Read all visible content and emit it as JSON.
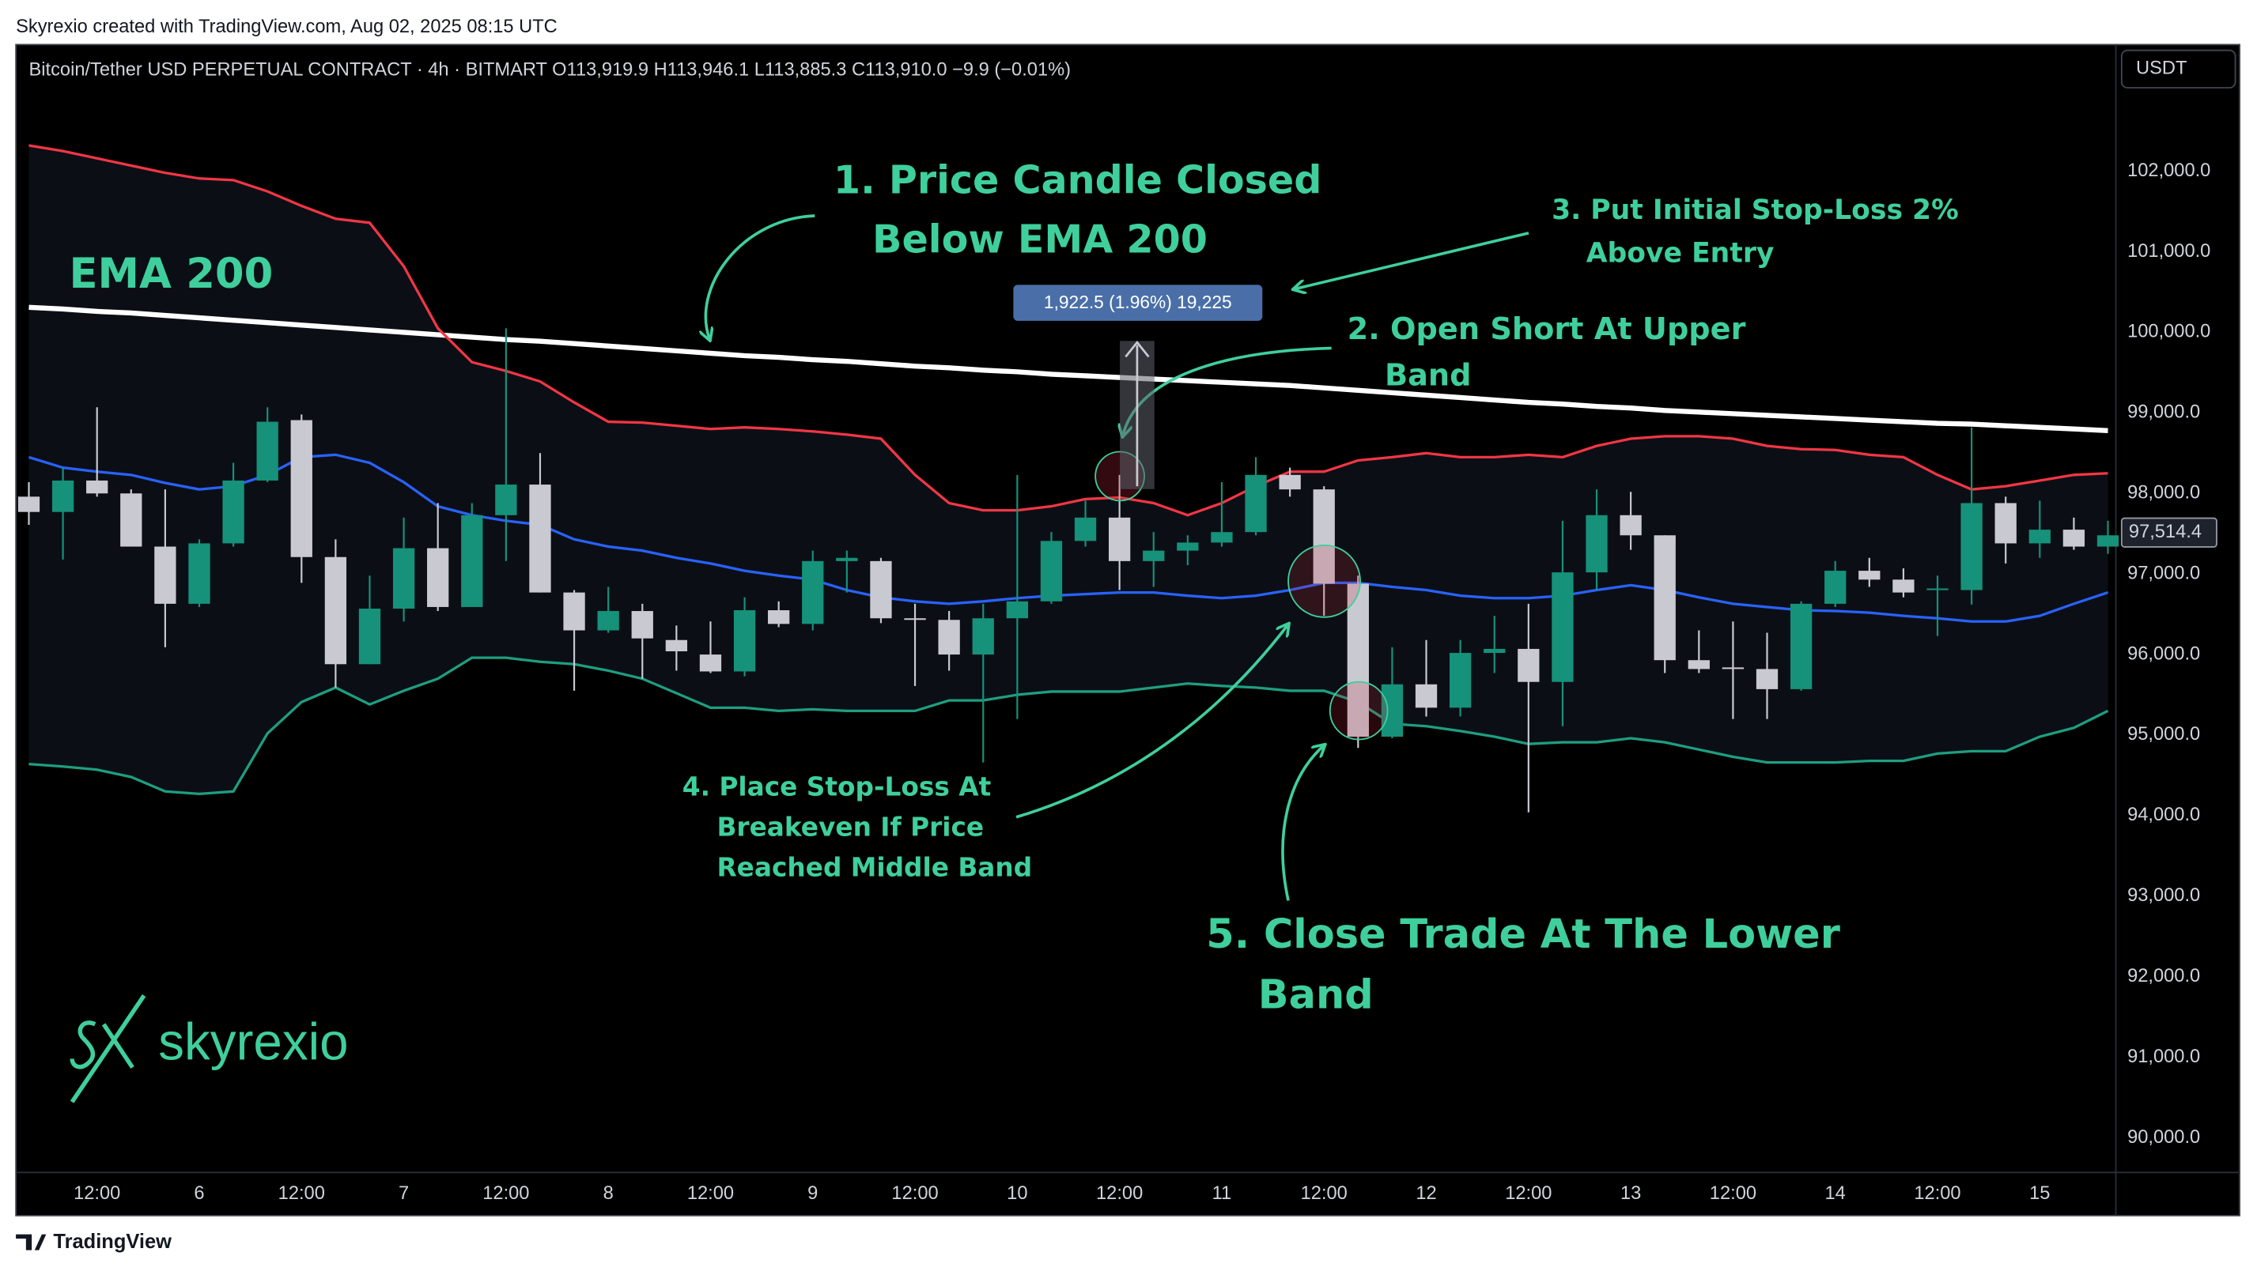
{
  "header": {
    "credit": "Skyrexio created with TradingView.com, Aug 02, 2025 08:15 UTC",
    "symbol": "Bitcoin/Tether USD PERPETUAL CONTRACT · 4h · BITMART  O113,919.9  H113,946.1  L113,885.3  C113,910.0  −9.9 (−0.01%)",
    "currency": "USDT"
  },
  "footer": {
    "brand": "TradingView"
  },
  "logo": "skyrexio",
  "chart_data": {
    "type": "candlestick",
    "categories": [
      null,
      null,
      "12:00",
      null,
      null,
      "6",
      null,
      null,
      "12:00",
      null,
      null,
      "7",
      null,
      null,
      "12:00",
      null,
      null,
      "8",
      null,
      null,
      "12:00",
      null,
      null,
      "9",
      null,
      null,
      "12:00",
      null,
      null,
      "10",
      null,
      null,
      "12:00",
      null,
      null,
      "11",
      null,
      null,
      "12:00",
      null,
      null,
      "12",
      null,
      null,
      "12:00",
      null,
      null,
      "13",
      null,
      null,
      "12:00",
      null,
      null,
      "14",
      null,
      null,
      "12:00",
      null,
      null,
      "15",
      null,
      null
    ],
    "open": [
      97960,
      97770,
      98160,
      98000,
      97340,
      96630,
      97380,
      98160,
      98910,
      97210,
      95880,
      96570,
      97320,
      96590,
      97730,
      98110,
      96770,
      96300,
      96540,
      96180,
      96000,
      95790,
      96550,
      96380,
      97160,
      97160,
      96450,
      96430,
      96000,
      96450,
      96660,
      97410,
      97700,
      97160,
      97290,
      97390,
      97520,
      98230,
      98050,
      96880,
      94980,
      95630,
      95340,
      96020,
      96070,
      95660,
      97020,
      97730,
      97480,
      95930,
      95840,
      95820,
      95570,
      96630,
      97040,
      96930,
      96800,
      96800,
      97880,
      97380,
      97550,
      97340
    ],
    "high": [
      98140,
      98320,
      99070,
      98050,
      98050,
      97430,
      98380,
      99070,
      98980,
      97430,
      96980,
      97700,
      97880,
      97880,
      100050,
      98500,
      96800,
      96840,
      96630,
      96360,
      96410,
      96710,
      96660,
      97290,
      97290,
      97200,
      96630,
      96540,
      96630,
      98230,
      97520,
      97910,
      98230,
      97520,
      97480,
      98140,
      98450,
      98320,
      98090,
      96980,
      96090,
      96180,
      96180,
      96480,
      96630,
      97660,
      98050,
      98020,
      97480,
      96300,
      96410,
      96270,
      96660,
      97160,
      97200,
      97070,
      96980,
      98820,
      97960,
      97910,
      97700,
      97660
    ],
    "low": [
      97610,
      97180,
      97960,
      97340,
      96090,
      96590,
      97340,
      98140,
      96890,
      95590,
      95880,
      96410,
      96540,
      96590,
      97160,
      96770,
      95550,
      96270,
      95700,
      95800,
      95770,
      95730,
      96340,
      96300,
      96770,
      96390,
      95610,
      95800,
      94660,
      95200,
      96630,
      97340,
      96800,
      96840,
      97110,
      97340,
      97480,
      97960,
      96480,
      94840,
      94960,
      95230,
      95230,
      95770,
      94040,
      95110,
      96800,
      97300,
      95770,
      95770,
      95200,
      95200,
      95550,
      96590,
      96840,
      96710,
      96230,
      96620,
      97130,
      97200,
      97300,
      97250
    ],
    "close": [
      97770,
      98160,
      98000,
      97340,
      96630,
      97380,
      98160,
      98890,
      97210,
      95880,
      96570,
      97320,
      96590,
      97730,
      98110,
      96770,
      96300,
      96540,
      96200,
      96040,
      95790,
      96550,
      96380,
      97160,
      97200,
      96450,
      96430,
      96000,
      96450,
      96660,
      97410,
      97700,
      97160,
      97290,
      97390,
      97520,
      98230,
      98050,
      96880,
      94980,
      95630,
      95340,
      96020,
      96070,
      95660,
      97020,
      97730,
      97480,
      95930,
      95820,
      95820,
      95570,
      96630,
      97040,
      96930,
      96770,
      96820,
      97880,
      97380,
      97550,
      97340,
      97480
    ],
    "up_color": "#16917a",
    "down_color": "#c9c9d1",
    "series": [
      {
        "name": "EMA 200",
        "color": "#ffffff",
        "values": [
          100310,
          100290,
          100260,
          100240,
          100210,
          100180,
          100150,
          100120,
          100090,
          100060,
          100030,
          100000,
          99970,
          99940,
          99910,
          99890,
          99860,
          99830,
          99800,
          99770,
          99740,
          99710,
          99690,
          99660,
          99640,
          99610,
          99580,
          99560,
          99530,
          99510,
          99480,
          99460,
          99440,
          99420,
          99400,
          99380,
          99360,
          99340,
          99310,
          99280,
          99250,
          99220,
          99190,
          99160,
          99130,
          99110,
          99080,
          99060,
          99030,
          99010,
          98990,
          98970,
          98950,
          98930,
          98910,
          98890,
          98870,
          98860,
          98840,
          98820,
          98800,
          98780
        ]
      },
      {
        "color": "#f23645",
        "values": [
          102320,
          102250,
          102160,
          102070,
          101980,
          101910,
          101890,
          101750,
          101570,
          101410,
          101360,
          100820,
          100050,
          99630,
          99520,
          99390,
          99130,
          98890,
          98880,
          98840,
          98800,
          98820,
          98800,
          98770,
          98730,
          98680,
          98230,
          97880,
          97790,
          97790,
          97840,
          97930,
          97950,
          97880,
          97730,
          97880,
          98090,
          98270,
          98270,
          98410,
          98450,
          98500,
          98450,
          98450,
          98480,
          98450,
          98590,
          98680,
          98710,
          98710,
          98680,
          98590,
          98550,
          98540,
          98480,
          98450,
          98230,
          98050,
          98090,
          98160,
          98230,
          98250
        ]
      },
      {
        "color": "#2962ff",
        "values": [
          98450,
          98320,
          98270,
          98230,
          98130,
          98050,
          98090,
          98230,
          98450,
          98480,
          98380,
          98140,
          97840,
          97730,
          97660,
          97610,
          97430,
          97340,
          97290,
          97200,
          97130,
          97040,
          96980,
          96930,
          96800,
          96710,
          96660,
          96630,
          96660,
          96700,
          96730,
          96750,
          96770,
          96770,
          96730,
          96700,
          96730,
          96800,
          96890,
          96890,
          96840,
          96800,
          96730,
          96700,
          96700,
          96730,
          96800,
          96860,
          96800,
          96710,
          96630,
          96590,
          96550,
          96540,
          96520,
          96480,
          96450,
          96410,
          96410,
          96480,
          96630,
          96770
        ]
      },
      {
        "color": "#1e9e80",
        "values": [
          94640,
          94610,
          94570,
          94480,
          94300,
          94270,
          94300,
          95020,
          95410,
          95590,
          95380,
          95550,
          95700,
          95960,
          95960,
          95910,
          95880,
          95800,
          95700,
          95520,
          95340,
          95340,
          95300,
          95320,
          95300,
          95300,
          95300,
          95430,
          95430,
          95500,
          95540,
          95540,
          95540,
          95590,
          95640,
          95610,
          95590,
          95550,
          95550,
          95410,
          95140,
          95110,
          95050,
          94980,
          94890,
          94910,
          94910,
          94960,
          94910,
          94820,
          94730,
          94660,
          94660,
          94660,
          94680,
          94680,
          94770,
          94800,
          94800,
          94980,
          95090,
          95300
        ]
      }
    ],
    "band_fill": "#0b0f15",
    "ylim": [
      89570,
      103590
    ],
    "yticks": [
      {
        "value": 90000,
        "label": "90,000.0"
      },
      {
        "value": 91000,
        "label": "91,000.0"
      },
      {
        "value": 92000,
        "label": "92,000.0"
      },
      {
        "value": 93000,
        "label": "93,000.0"
      },
      {
        "value": 94000,
        "label": "94,000.0"
      },
      {
        "value": 95000,
        "label": "95,000.0"
      },
      {
        "value": 96000,
        "label": "96,000.0"
      },
      {
        "value": 97000,
        "label": "97,000.0"
      },
      {
        "value": 98000,
        "label": "98,000.0"
      },
      {
        "value": 99000,
        "label": "99,000.0"
      },
      {
        "value": 100000,
        "label": "100,000.0"
      },
      {
        "value": 101000,
        "label": "101,000.0"
      },
      {
        "value": 102000,
        "label": "102,000.0"
      }
    ],
    "grid": false,
    "last_price": {
      "value": 97514.4,
      "label": "97,514.4"
    },
    "measure_label": "1,922.5 (1.96%) 19,225",
    "annotations": [
      [
        "1. Price Candle Closed",
        "Below EMA 200"
      ],
      [
        "2. Open Short At Upper",
        "Band"
      ],
      [
        "3. Put Initial Stop-Loss 2%",
        "Above Entry"
      ],
      [
        "4. Place Stop-Loss At",
        "Breakeven If Price",
        "Reached Middle Band"
      ],
      [
        "5. Close Trade At The Lower",
        "Band"
      ]
    ]
  }
}
